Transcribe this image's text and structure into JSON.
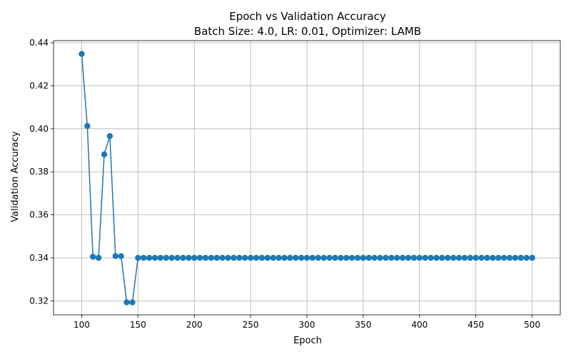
{
  "chart_data": {
    "type": "line",
    "title": "Epoch vs Validation Accuracy",
    "subtitle": "Batch Size: 4.0, LR: 0.01, Optimizer: LAMB",
    "xlabel": "Epoch",
    "ylabel": "Validation Accuracy",
    "xlim": [
      75,
      525
    ],
    "ylim": [
      0.3135,
      0.441
    ],
    "xticks": [
      100,
      150,
      200,
      250,
      300,
      350,
      400,
      450,
      500
    ],
    "yticks": [
      0.32,
      0.34,
      0.36,
      0.38,
      0.4,
      0.42,
      0.44
    ],
    "xtick_labels": [
      "100",
      "150",
      "200",
      "250",
      "300",
      "350",
      "400",
      "450",
      "500"
    ],
    "ytick_labels": [
      "0.32",
      "0.34",
      "0.36",
      "0.38",
      "0.40",
      "0.42",
      "0.44"
    ],
    "grid": true,
    "marker": "circle",
    "color": "#1f77b4",
    "series": [
      {
        "x": [
          100,
          105,
          110,
          115,
          120,
          125,
          130,
          135,
          140,
          145,
          150,
          155,
          160,
          165,
          170,
          175,
          180,
          185,
          190,
          195,
          200,
          205,
          210,
          215,
          220,
          225,
          230,
          235,
          240,
          245,
          250,
          255,
          260,
          265,
          270,
          275,
          280,
          285,
          290,
          295,
          300,
          305,
          310,
          315,
          320,
          325,
          330,
          335,
          340,
          345,
          350,
          355,
          360,
          365,
          370,
          375,
          380,
          385,
          390,
          395,
          400,
          405,
          410,
          415,
          420,
          425,
          430,
          435,
          440,
          445,
          450,
          455,
          460,
          465,
          470,
          475,
          480,
          485,
          490,
          495,
          500
        ],
        "y": [
          0.4348,
          0.4013,
          0.3405,
          0.34,
          0.3881,
          0.3966,
          0.3408,
          0.3408,
          0.3193,
          0.3193,
          0.34,
          0.34,
          0.34,
          0.34,
          0.34,
          0.34,
          0.34,
          0.34,
          0.34,
          0.34,
          0.34,
          0.34,
          0.34,
          0.34,
          0.34,
          0.34,
          0.34,
          0.34,
          0.34,
          0.34,
          0.34,
          0.34,
          0.34,
          0.34,
          0.34,
          0.34,
          0.34,
          0.34,
          0.34,
          0.34,
          0.34,
          0.34,
          0.34,
          0.34,
          0.34,
          0.34,
          0.34,
          0.34,
          0.34,
          0.34,
          0.34,
          0.34,
          0.34,
          0.34,
          0.34,
          0.34,
          0.34,
          0.34,
          0.34,
          0.34,
          0.34,
          0.34,
          0.34,
          0.34,
          0.34,
          0.34,
          0.34,
          0.34,
          0.34,
          0.34,
          0.34,
          0.34,
          0.34,
          0.34,
          0.34,
          0.34,
          0.34,
          0.34,
          0.34,
          0.34,
          0.34
        ]
      }
    ]
  }
}
